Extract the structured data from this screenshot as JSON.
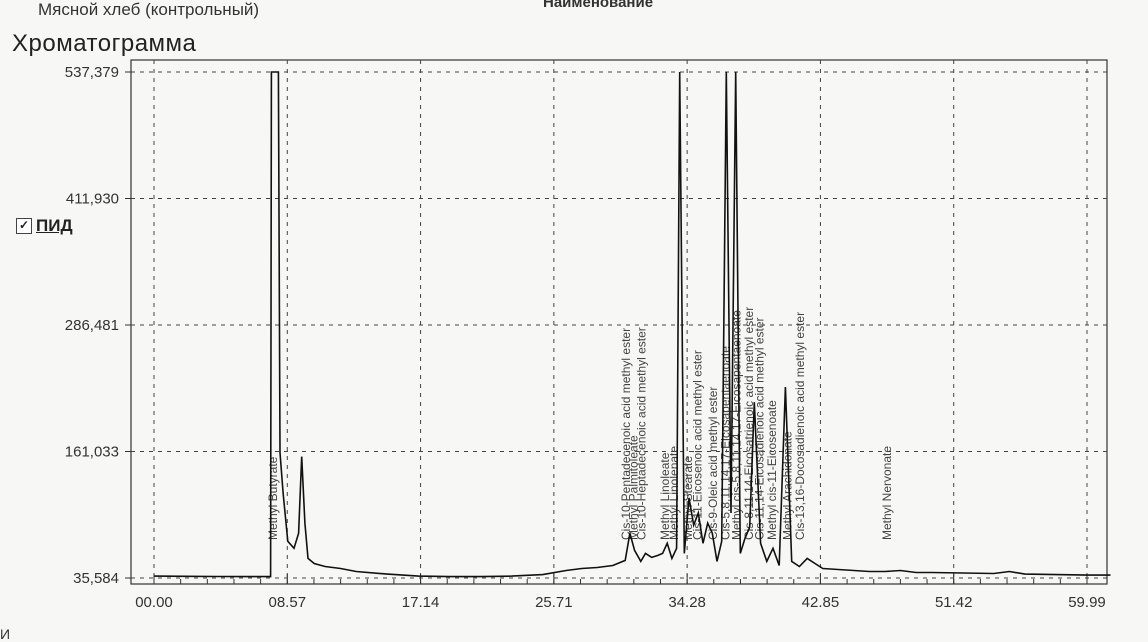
{
  "header": {
    "sample_name": "Мясной хлеб (контрольный)",
    "column_header": "Наименование",
    "title": "Хроматограмма"
  },
  "legend": {
    "label": "ПИД",
    "checked": true,
    "check_glyph": "✓"
  },
  "chart_data": {
    "type": "line",
    "title": "Хроматограмма",
    "xlabel": "",
    "ylabel": "",
    "xlim": [
      0,
      61.5
    ],
    "ylim": [
      30,
      537.379
    ],
    "y_ticks": [
      "537,379",
      "411,930",
      "286,481",
      "161,033",
      "35,584"
    ],
    "x_ticks": [
      "00.00",
      "08.57",
      "17.14",
      "25.71",
      "34.28",
      "42.85",
      "51.42",
      "59.99"
    ],
    "grid": true,
    "series": [
      {
        "name": "ПИД",
        "x": [
          0,
          2,
          4,
          6,
          7.5,
          7.55,
          7.6,
          7.7,
          7.8,
          7.9,
          8.0,
          8.1,
          8.3,
          8.6,
          9.0,
          9.3,
          9.5,
          9.7,
          9.9,
          10.3,
          11,
          12,
          13,
          15,
          17,
          19,
          21,
          23,
          25,
          26.5,
          27.5,
          28.5,
          29.5,
          30.3,
          30.6,
          30.9,
          31.3,
          31.6,
          32.0,
          32.4,
          32.7,
          33.0,
          33.3,
          33.6,
          33.8,
          34.1,
          34.4,
          34.7,
          35.0,
          35.3,
          35.6,
          35.9,
          36.2,
          36.5,
          36.8,
          37.1,
          37.4,
          37.7,
          38.0,
          38.3,
          38.6,
          39.0,
          39.4,
          39.8,
          40.2,
          40.6,
          41.0,
          41.5,
          42.0,
          42.5,
          43.0,
          44,
          45,
          46,
          47,
          48,
          49,
          50,
          52,
          54,
          55,
          56,
          58,
          60,
          61.5
        ],
        "y": [
          37.5,
          37.3,
          37.1,
          37.0,
          37.0,
          537.4,
          537.4,
          537.4,
          537.4,
          537.4,
          537.4,
          160.0,
          120.0,
          72.0,
          65.0,
          80.0,
          156.0,
          90.0,
          55.0,
          50.0,
          47.0,
          45.0,
          42.0,
          39.5,
          37.5,
          37.0,
          37.0,
          37.5,
          39.0,
          43.0,
          45.0,
          46.0,
          48.0,
          53.0,
          80.0,
          63.0,
          52.0,
          60.0,
          56.0,
          58.0,
          60.0,
          70.0,
          55.0,
          65.0,
          537.4,
          60.0,
          115.0,
          88.0,
          100.0,
          70.0,
          90.0,
          80.0,
          52.0,
          72.0,
          537.4,
          100.0,
          537.4,
          60.0,
          75.0,
          86.0,
          210.0,
          70.0,
          52.0,
          65.0,
          48.0,
          225.0,
          52.0,
          47.0,
          55.0,
          50.0,
          45.0,
          44.0,
          43.0,
          42.0,
          42.0,
          43.0,
          41.0,
          41.0,
          40.5,
          40.0,
          42.0,
          39.5,
          39.0,
          38.5,
          38.5
        ]
      }
    ],
    "peak_labels": [
      {
        "x": 7.9,
        "text": "Methyl Butyrate"
      },
      {
        "x": 30.6,
        "text": "Cis-10-Pentadecenoic acid methyl ester"
      },
      {
        "x": 31.1,
        "text": "Methyl Palmitoleate"
      },
      {
        "x": 31.6,
        "text": "Cis-10-Heptadecenoic acid methyl ester"
      },
      {
        "x": 33.1,
        "text": "Methyl Linoleate"
      },
      {
        "x": 33.7,
        "text": "Methyl Linolenate"
      },
      {
        "x": 34.6,
        "text": "Methyl Stearate"
      },
      {
        "x": 35.2,
        "text": "Cis-11-Eicosenoic acid methyl ester"
      },
      {
        "x": 36.2,
        "text": "Cis-9-Oleic acid methyl ester"
      },
      {
        "x": 37.0,
        "text": "Cis-5,8,11,14,17-Eicosapentaenoate"
      },
      {
        "x": 37.7,
        "text": "Methyl cis-5,8,11,14,17-Eicosapentaenoate"
      },
      {
        "x": 38.5,
        "text": "Cis-8,11,14-Eicosatrienoic acid methyl ester"
      },
      {
        "x": 39.2,
        "text": "Cis-11,14-Eicosadienoic acid methyl ester"
      },
      {
        "x": 40.0,
        "text": "Methyl cis-11-Eicosenoate"
      },
      {
        "x": 41.0,
        "text": "Methyl Arachidonate"
      },
      {
        "x": 41.8,
        "text": "Cis-13,16-Docosadienoic acid methyl ester"
      },
      {
        "x": 47.4,
        "text": "Methyl Nervonate"
      }
    ],
    "line_color": "#111111",
    "grid_color": "#444444"
  },
  "footer": {
    "fragment": "И"
  }
}
